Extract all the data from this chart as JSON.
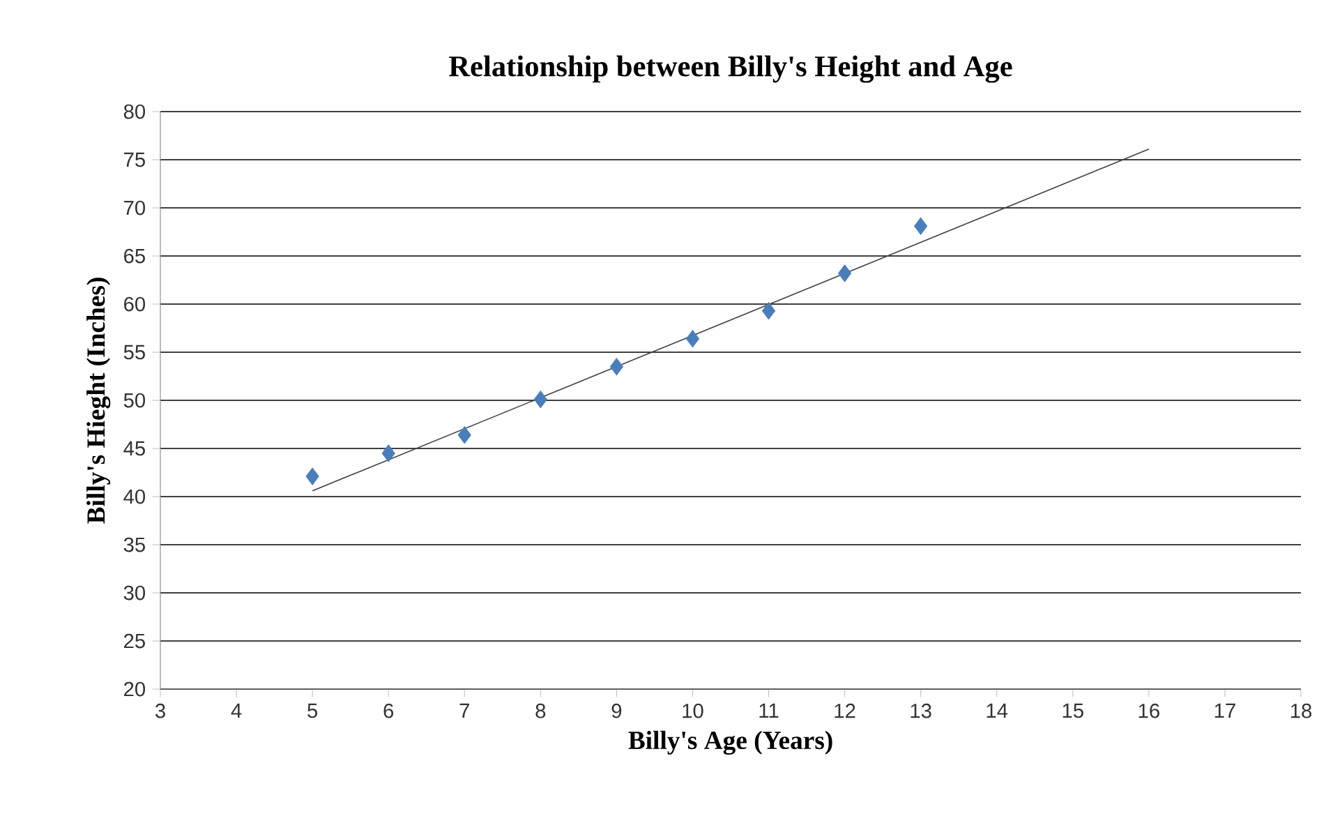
{
  "chart_data": {
    "type": "scatter",
    "title": "Relationship between Billy's Height and Age",
    "xlabel": "Billy's Age (Years)",
    "ylabel": "Billy's Hieght (Inches)",
    "xlim": [
      3,
      18
    ],
    "xticks": [
      3,
      4,
      5,
      6,
      7,
      8,
      9,
      10,
      11,
      12,
      13,
      14,
      15,
      16,
      17,
      18
    ],
    "ylim": [
      20,
      80
    ],
    "yticks": [
      20,
      25,
      30,
      35,
      40,
      45,
      50,
      55,
      60,
      65,
      70,
      75,
      80
    ],
    "grid": "y",
    "marker": "diamond",
    "series": [
      {
        "color": "#4a7ebb",
        "x": [
          5,
          6,
          7,
          8,
          9,
          10,
          11,
          12,
          13
        ],
        "values": [
          42.1,
          44.5,
          46.4,
          50.1,
          53.5,
          56.4,
          59.3,
          63.2,
          68.1
        ]
      },
      {
        "type": "line",
        "color": "#404040",
        "marker": "none",
        "x": [
          5,
          16
        ],
        "values": [
          40.6,
          76.1
        ]
      }
    ]
  }
}
